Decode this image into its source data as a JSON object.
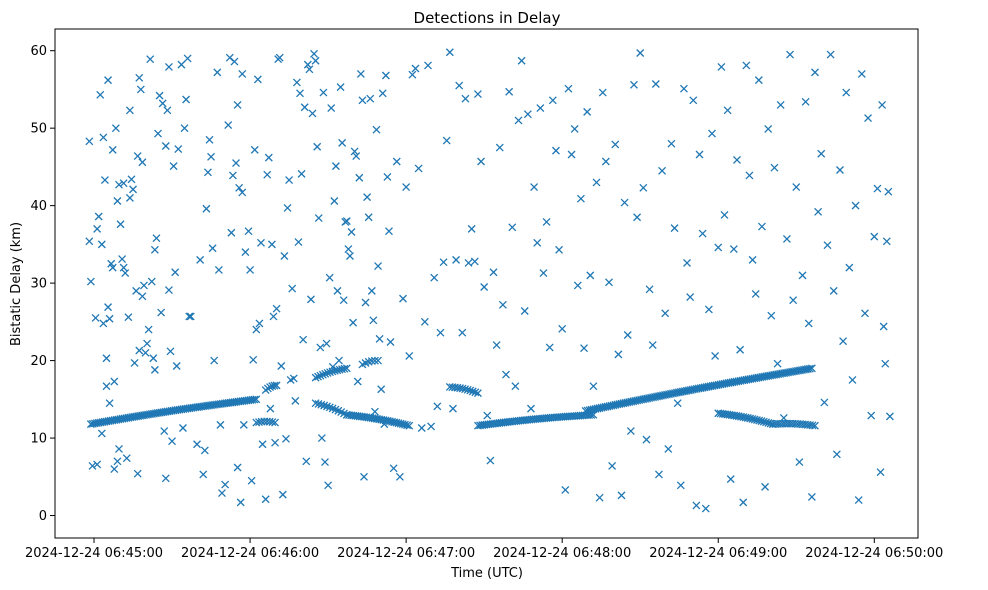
{
  "chart_data": {
    "type": "scatter",
    "title": "Detections in Delay",
    "xlabel": "Time (UTC)",
    "ylabel": "Bistatic Delay (km)",
    "x_units": "minutes after 06:44:00 UTC",
    "xlim": [
      0.75,
      6.28
    ],
    "ylim": [
      -2.9,
      62.8
    ],
    "grid": false,
    "marker": "x",
    "color": "#1f77b4",
    "x_ticks": [
      {
        "value": 1,
        "label": "2024-12-24 06:45:00"
      },
      {
        "value": 2,
        "label": "2024-12-24 06:46:00"
      },
      {
        "value": 3,
        "label": "2024-12-24 06:47:00"
      },
      {
        "value": 4,
        "label": "2024-12-24 06:48:00"
      },
      {
        "value": 5,
        "label": "2024-12-24 06:49:00"
      },
      {
        "value": 6,
        "label": "2024-12-24 06:50:00"
      }
    ],
    "y_ticks": [
      0,
      10,
      20,
      30,
      40,
      50,
      60
    ],
    "tracks": [
      {
        "name": "track-a",
        "x_start": 0.98,
        "x_end": 2.04,
        "y_start": 11.8,
        "y_end": 15.0,
        "count": 85
      },
      {
        "name": "track-b",
        "x_start": 2.04,
        "x_end": 2.16,
        "y_start": 12.0,
        "y_end": 12.0,
        "count": 8
      },
      {
        "name": "track-c",
        "x_start": 2.1,
        "x_end": 2.17,
        "y_start": 16.2,
        "y_end": 16.8,
        "count": 6
      },
      {
        "name": "track-d",
        "x_start": 2.42,
        "x_end": 2.62,
        "y_start": 17.8,
        "y_end": 19.0,
        "count": 14
      },
      {
        "name": "track-e",
        "x_start": 2.42,
        "x_end": 2.62,
        "y_start": 14.5,
        "y_end": 13.0,
        "count": 12
      },
      {
        "name": "track-f",
        "x_start": 2.62,
        "x_end": 3.02,
        "y_start": 13.0,
        "y_end": 11.6,
        "count": 30
      },
      {
        "name": "track-g",
        "x_start": 2.72,
        "x_end": 2.82,
        "y_start": 19.5,
        "y_end": 20.0,
        "count": 6
      },
      {
        "name": "track-h",
        "x_start": 3.28,
        "x_end": 3.46,
        "y_start": 16.6,
        "y_end": 15.8,
        "count": 12
      },
      {
        "name": "track-i",
        "x_start": 3.46,
        "x_end": 4.2,
        "y_start": 11.6,
        "y_end": 13.0,
        "count": 55
      },
      {
        "name": "track-j",
        "x_start": 4.15,
        "x_end": 5.6,
        "y_start": 13.5,
        "y_end": 19.0,
        "count": 115
      },
      {
        "name": "track-k",
        "x_start": 5.0,
        "x_end": 5.35,
        "y_start": 13.2,
        "y_end": 11.8,
        "count": 25
      },
      {
        "name": "track-l",
        "x_start": 5.35,
        "x_end": 5.62,
        "y_start": 11.8,
        "y_end": 11.6,
        "count": 18
      }
    ],
    "scattered_points": [
      [
        0.97,
        48.3
      ],
      [
        0.97,
        35.4
      ],
      [
        0.98,
        30.2
      ],
      [
        0.99,
        6.4
      ],
      [
        1.01,
        25.5
      ],
      [
        1.02,
        6.6
      ],
      [
        1.02,
        37.0
      ],
      [
        1.03,
        38.6
      ],
      [
        1.04,
        54.3
      ],
      [
        1.05,
        10.6
      ],
      [
        1.05,
        35.0
      ],
      [
        1.06,
        24.8
      ],
      [
        1.06,
        48.8
      ],
      [
        1.07,
        43.3
      ],
      [
        1.08,
        20.3
      ],
      [
        1.08,
        16.7
      ],
      [
        1.09,
        56.2
      ],
      [
        1.09,
        26.9
      ],
      [
        1.1,
        14.5
      ],
      [
        1.1,
        25.4
      ],
      [
        1.11,
        32.5
      ],
      [
        1.12,
        32.0
      ],
      [
        1.12,
        47.2
      ],
      [
        1.13,
        6.0
      ],
      [
        1.13,
        17.3
      ],
      [
        1.14,
        50.0
      ],
      [
        1.15,
        7.0
      ],
      [
        1.15,
        40.6
      ],
      [
        1.16,
        8.6
      ],
      [
        1.16,
        42.7
      ],
      [
        1.17,
        37.6
      ],
      [
        1.18,
        33.1
      ],
      [
        1.19,
        42.9
      ],
      [
        1.19,
        32.0
      ],
      [
        1.2,
        31.3
      ],
      [
        1.21,
        7.4
      ],
      [
        1.22,
        25.6
      ],
      [
        1.23,
        52.3
      ],
      [
        1.23,
        41.0
      ],
      [
        1.24,
        43.4
      ],
      [
        1.25,
        42.1
      ],
      [
        1.26,
        19.7
      ],
      [
        1.27,
        29.0
      ],
      [
        1.28,
        5.4
      ],
      [
        1.28,
        46.4
      ],
      [
        1.29,
        56.5
      ],
      [
        1.29,
        21.3
      ],
      [
        1.3,
        55.0
      ],
      [
        1.31,
        28.3
      ],
      [
        1.31,
        45.6
      ],
      [
        1.32,
        29.7
      ],
      [
        1.33,
        21.0
      ],
      [
        1.34,
        22.2
      ],
      [
        1.35,
        24.0
      ],
      [
        1.36,
        58.9
      ],
      [
        1.37,
        30.2
      ],
      [
        1.38,
        20.3
      ],
      [
        1.39,
        34.3
      ],
      [
        1.39,
        18.8
      ],
      [
        1.4,
        35.8
      ],
      [
        1.41,
        49.3
      ],
      [
        1.42,
        54.2
      ],
      [
        1.43,
        26.2
      ],
      [
        1.44,
        53.2
      ],
      [
        1.45,
        10.9
      ],
      [
        1.46,
        4.8
      ],
      [
        1.46,
        47.7
      ],
      [
        1.47,
        52.3
      ],
      [
        1.48,
        57.9
      ],
      [
        1.48,
        29.1
      ],
      [
        1.49,
        21.2
      ],
      [
        1.5,
        9.6
      ],
      [
        1.51,
        45.1
      ],
      [
        1.52,
        31.4
      ],
      [
        1.53,
        19.3
      ],
      [
        1.54,
        47.3
      ],
      [
        1.56,
        58.2
      ],
      [
        1.57,
        11.3
      ],
      [
        1.58,
        50.0
      ],
      [
        1.59,
        53.7
      ],
      [
        1.6,
        59.0
      ],
      [
        1.61,
        25.7
      ],
      [
        1.62,
        25.7
      ],
      [
        1.66,
        9.2
      ],
      [
        1.68,
        33.0
      ],
      [
        1.7,
        5.3
      ],
      [
        1.71,
        8.4
      ],
      [
        1.72,
        39.6
      ],
      [
        1.73,
        44.3
      ],
      [
        1.74,
        48.5
      ],
      [
        1.75,
        46.3
      ],
      [
        1.76,
        34.5
      ],
      [
        1.77,
        20.0
      ],
      [
        1.79,
        57.2
      ],
      [
        1.8,
        31.7
      ],
      [
        1.81,
        11.7
      ],
      [
        1.82,
        2.9
      ],
      [
        1.84,
        4.0
      ],
      [
        1.86,
        50.4
      ],
      [
        1.87,
        59.1
      ],
      [
        1.88,
        36.5
      ],
      [
        1.89,
        43.9
      ],
      [
        1.9,
        58.6
      ],
      [
        1.91,
        45.5
      ],
      [
        1.92,
        53.0
      ],
      [
        1.92,
        6.2
      ],
      [
        1.93,
        42.3
      ],
      [
        1.94,
        1.7
      ],
      [
        1.95,
        57.0
      ],
      [
        1.95,
        41.7
      ],
      [
        1.96,
        11.7
      ],
      [
        1.97,
        34.0
      ],
      [
        1.99,
        36.7
      ],
      [
        2.0,
        31.7
      ],
      [
        2.01,
        4.5
      ],
      [
        2.02,
        20.1
      ],
      [
        2.03,
        47.2
      ],
      [
        2.04,
        24.0
      ],
      [
        2.05,
        56.3
      ],
      [
        2.06,
        24.8
      ],
      [
        2.07,
        35.2
      ],
      [
        2.08,
        9.2
      ],
      [
        2.1,
        2.1
      ],
      [
        2.11,
        44.0
      ],
      [
        2.12,
        46.2
      ],
      [
        2.13,
        13.8
      ],
      [
        2.14,
        35.0
      ],
      [
        2.15,
        25.7
      ],
      [
        2.16,
        9.4
      ],
      [
        2.17,
        26.7
      ],
      [
        2.18,
        58.9
      ],
      [
        2.19,
        59.1
      ],
      [
        2.2,
        19.3
      ],
      [
        2.21,
        2.7
      ],
      [
        2.22,
        33.5
      ],
      [
        2.23,
        9.9
      ],
      [
        2.24,
        39.7
      ],
      [
        2.25,
        43.3
      ],
      [
        2.26,
        17.5
      ],
      [
        2.27,
        29.3
      ],
      [
        2.28,
        17.7
      ],
      [
        2.29,
        14.8
      ],
      [
        2.3,
        55.9
      ],
      [
        2.31,
        35.3
      ],
      [
        2.32,
        54.5
      ],
      [
        2.33,
        44.1
      ],
      [
        2.34,
        22.7
      ],
      [
        2.35,
        52.7
      ],
      [
        2.36,
        7.0
      ],
      [
        2.37,
        58.2
      ],
      [
        2.38,
        57.6
      ],
      [
        2.39,
        27.9
      ],
      [
        2.4,
        51.9
      ],
      [
        2.41,
        59.6
      ],
      [
        2.42,
        58.7
      ],
      [
        2.43,
        47.6
      ],
      [
        2.44,
        38.4
      ],
      [
        2.45,
        21.7
      ],
      [
        2.46,
        10.0
      ],
      [
        2.47,
        54.6
      ],
      [
        2.48,
        6.9
      ],
      [
        2.49,
        22.2
      ],
      [
        2.5,
        3.9
      ],
      [
        2.51,
        30.7
      ],
      [
        2.52,
        52.6
      ],
      [
        2.53,
        19.2
      ],
      [
        2.54,
        40.6
      ],
      [
        2.55,
        45.1
      ],
      [
        2.56,
        29.0
      ],
      [
        2.57,
        20.0
      ],
      [
        2.58,
        55.3
      ],
      [
        2.59,
        48.1
      ],
      [
        2.6,
        27.8
      ],
      [
        2.61,
        37.9
      ],
      [
        2.62,
        38.0
      ],
      [
        2.63,
        34.4
      ],
      [
        2.64,
        33.5
      ],
      [
        2.65,
        36.6
      ],
      [
        2.66,
        24.9
      ],
      [
        2.67,
        47.0
      ],
      [
        2.68,
        46.4
      ],
      [
        2.69,
        17.3
      ],
      [
        2.7,
        43.6
      ],
      [
        2.71,
        57.0
      ],
      [
        2.72,
        53.6
      ],
      [
        2.73,
        5.0
      ],
      [
        2.74,
        27.5
      ],
      [
        2.75,
        41.1
      ],
      [
        2.76,
        38.5
      ],
      [
        2.77,
        53.8
      ],
      [
        2.78,
        29.0
      ],
      [
        2.79,
        25.2
      ],
      [
        2.8,
        13.4
      ],
      [
        2.81,
        49.8
      ],
      [
        2.82,
        32.2
      ],
      [
        2.83,
        22.8
      ],
      [
        2.84,
        16.3
      ],
      [
        2.85,
        54.5
      ],
      [
        2.86,
        11.8
      ],
      [
        2.87,
        56.8
      ],
      [
        2.88,
        43.7
      ],
      [
        2.89,
        36.7
      ],
      [
        2.9,
        22.4
      ],
      [
        2.92,
        6.1
      ],
      [
        2.94,
        45.7
      ],
      [
        2.96,
        5.0
      ],
      [
        2.98,
        28.0
      ],
      [
        3.0,
        42.4
      ],
      [
        3.02,
        20.6
      ],
      [
        3.04,
        56.9
      ],
      [
        3.06,
        57.7
      ],
      [
        3.08,
        44.8
      ],
      [
        3.1,
        11.3
      ],
      [
        3.12,
        25.0
      ],
      [
        3.14,
        58.1
      ],
      [
        3.16,
        11.5
      ],
      [
        3.18,
        30.7
      ],
      [
        3.2,
        14.1
      ],
      [
        3.22,
        23.6
      ],
      [
        3.24,
        32.7
      ],
      [
        3.26,
        48.4
      ],
      [
        3.28,
        59.8
      ],
      [
        3.3,
        13.8
      ],
      [
        3.32,
        33.0
      ],
      [
        3.34,
        55.5
      ],
      [
        3.36,
        23.6
      ],
      [
        3.38,
        53.8
      ],
      [
        3.4,
        32.6
      ],
      [
        3.42,
        37.0
      ],
      [
        3.44,
        32.8
      ],
      [
        3.46,
        54.4
      ],
      [
        3.48,
        45.7
      ],
      [
        3.5,
        29.5
      ],
      [
        3.52,
        12.9
      ],
      [
        3.54,
        7.1
      ],
      [
        3.56,
        31.4
      ],
      [
        3.58,
        22.0
      ],
      [
        3.6,
        47.5
      ],
      [
        3.62,
        27.2
      ],
      [
        3.64,
        18.2
      ],
      [
        3.66,
        54.7
      ],
      [
        3.68,
        37.2
      ],
      [
        3.7,
        16.7
      ],
      [
        3.72,
        51.0
      ],
      [
        3.74,
        58.7
      ],
      [
        3.76,
        26.4
      ],
      [
        3.78,
        51.8
      ],
      [
        3.8,
        13.8
      ],
      [
        3.82,
        42.4
      ],
      [
        3.84,
        35.2
      ],
      [
        3.86,
        52.6
      ],
      [
        3.88,
        31.3
      ],
      [
        3.9,
        37.9
      ],
      [
        3.92,
        21.7
      ],
      [
        3.94,
        53.6
      ],
      [
        3.96,
        47.1
      ],
      [
        3.98,
        34.3
      ],
      [
        4.0,
        24.1
      ],
      [
        4.02,
        3.3
      ],
      [
        4.04,
        55.1
      ],
      [
        4.06,
        46.6
      ],
      [
        4.08,
        49.9
      ],
      [
        4.1,
        29.7
      ],
      [
        4.12,
        40.9
      ],
      [
        4.14,
        21.6
      ],
      [
        4.16,
        52.1
      ],
      [
        4.18,
        31.0
      ],
      [
        4.2,
        16.7
      ],
      [
        4.22,
        43.0
      ],
      [
        4.24,
        2.3
      ],
      [
        4.26,
        54.6
      ],
      [
        4.28,
        45.7
      ],
      [
        4.3,
        30.1
      ],
      [
        4.32,
        6.4
      ],
      [
        4.34,
        47.9
      ],
      [
        4.36,
        20.8
      ],
      [
        4.38,
        2.6
      ],
      [
        4.4,
        40.4
      ],
      [
        4.42,
        23.3
      ],
      [
        4.44,
        10.9
      ],
      [
        4.46,
        55.6
      ],
      [
        4.48,
        38.5
      ],
      [
        4.5,
        59.7
      ],
      [
        4.52,
        42.3
      ],
      [
        4.54,
        9.8
      ],
      [
        4.56,
        29.2
      ],
      [
        4.58,
        22.0
      ],
      [
        4.6,
        55.7
      ],
      [
        4.62,
        5.3
      ],
      [
        4.64,
        44.5
      ],
      [
        4.66,
        26.1
      ],
      [
        4.68,
        8.6
      ],
      [
        4.7,
        48.0
      ],
      [
        4.72,
        37.1
      ],
      [
        4.74,
        14.5
      ],
      [
        4.76,
        3.9
      ],
      [
        4.78,
        55.1
      ],
      [
        4.8,
        32.6
      ],
      [
        4.82,
        28.2
      ],
      [
        4.84,
        53.6
      ],
      [
        4.86,
        1.3
      ],
      [
        4.88,
        46.6
      ],
      [
        4.9,
        36.4
      ],
      [
        4.92,
        0.9
      ],
      [
        4.94,
        26.6
      ],
      [
        4.96,
        49.3
      ],
      [
        4.98,
        20.6
      ],
      [
        5.0,
        34.6
      ],
      [
        5.02,
        57.9
      ],
      [
        5.04,
        38.8
      ],
      [
        5.06,
        52.3
      ],
      [
        5.08,
        4.7
      ],
      [
        5.1,
        34.4
      ],
      [
        5.12,
        45.9
      ],
      [
        5.14,
        21.4
      ],
      [
        5.16,
        1.7
      ],
      [
        5.18,
        58.1
      ],
      [
        5.2,
        43.9
      ],
      [
        5.22,
        33.0
      ],
      [
        5.24,
        28.6
      ],
      [
        5.26,
        56.2
      ],
      [
        5.28,
        37.3
      ],
      [
        5.3,
        3.7
      ],
      [
        5.32,
        49.9
      ],
      [
        5.34,
        25.8
      ],
      [
        5.36,
        44.9
      ],
      [
        5.38,
        19.6
      ],
      [
        5.4,
        53.0
      ],
      [
        5.42,
        12.6
      ],
      [
        5.44,
        35.7
      ],
      [
        5.46,
        59.5
      ],
      [
        5.48,
        27.8
      ],
      [
        5.5,
        42.4
      ],
      [
        5.52,
        6.9
      ],
      [
        5.54,
        31.0
      ],
      [
        5.56,
        53.4
      ],
      [
        5.58,
        24.8
      ],
      [
        5.6,
        2.4
      ],
      [
        5.62,
        57.2
      ],
      [
        5.64,
        39.2
      ],
      [
        5.66,
        46.7
      ],
      [
        5.68,
        14.6
      ],
      [
        5.7,
        34.9
      ],
      [
        5.72,
        59.5
      ],
      [
        5.74,
        29.0
      ],
      [
        5.76,
        7.9
      ],
      [
        5.78,
        44.6
      ],
      [
        5.8,
        22.5
      ],
      [
        5.82,
        54.6
      ],
      [
        5.84,
        32.0
      ],
      [
        5.86,
        17.5
      ],
      [
        5.88,
        40.0
      ],
      [
        5.9,
        2.0
      ],
      [
        5.92,
        57.0
      ],
      [
        5.94,
        26.1
      ],
      [
        5.96,
        51.3
      ],
      [
        5.98,
        12.9
      ],
      [
        6.0,
        36.0
      ],
      [
        6.02,
        42.2
      ],
      [
        6.04,
        5.6
      ],
      [
        6.05,
        53.0
      ],
      [
        6.06,
        24.4
      ],
      [
        6.07,
        19.6
      ],
      [
        6.08,
        35.4
      ],
      [
        6.09,
        41.8
      ],
      [
        6.1,
        12.8
      ]
    ]
  }
}
